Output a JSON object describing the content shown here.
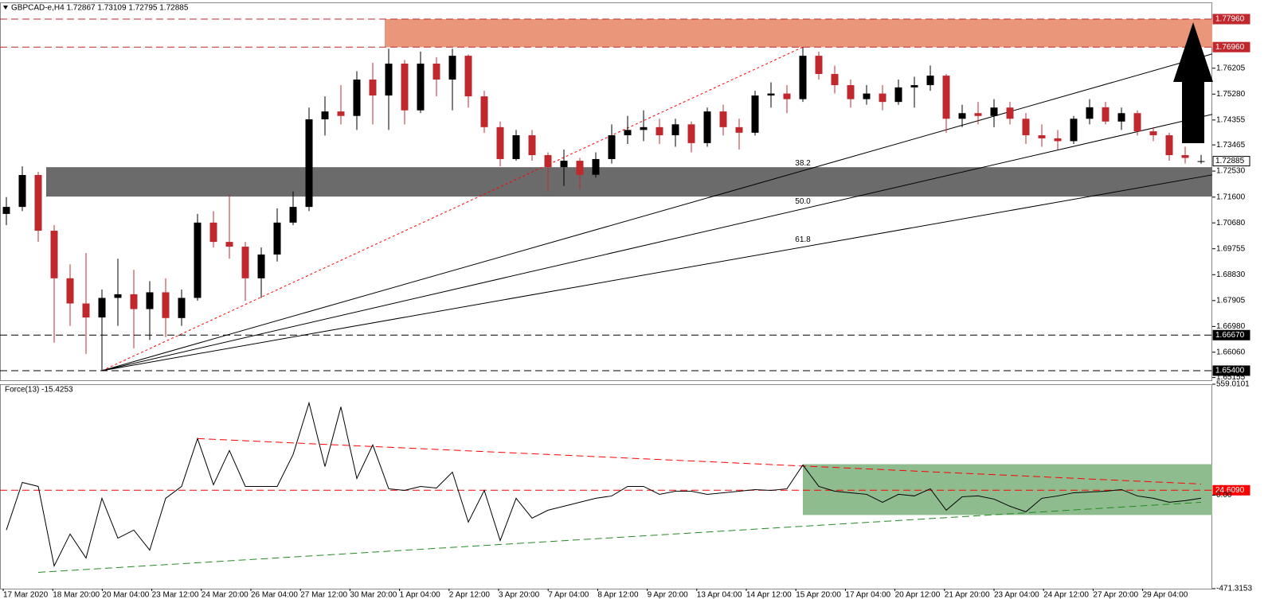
{
  "chart_data": [
    {
      "type": "candlestick",
      "title": "GBPCAD-e,H4 1.72867 1.73109 1.72795 1.72885",
      "up_color": "#000000",
      "down_color": "#c0282d",
      "candles": [
        [
          1.71,
          1.716,
          1.706,
          1.7125
        ],
        [
          1.7125,
          1.727,
          1.711,
          1.7239
        ],
        [
          1.7239,
          1.725,
          1.7,
          1.704
        ],
        [
          1.704,
          1.706,
          1.664,
          1.687
        ],
        [
          1.687,
          1.692,
          1.67,
          1.678
        ],
        [
          1.678,
          1.696,
          1.66,
          1.673
        ],
        [
          1.673,
          1.683,
          1.654,
          1.68
        ],
        [
          1.68,
          1.694,
          1.67,
          1.6813
        ],
        [
          1.6813,
          1.69,
          1.662,
          1.676
        ],
        [
          1.676,
          1.686,
          1.665,
          1.682
        ],
        [
          1.682,
          1.687,
          1.666,
          1.6728
        ],
        [
          1.6728,
          1.683,
          1.67,
          1.68
        ],
        [
          1.68,
          1.71,
          1.679,
          1.7069
        ],
        [
          1.7069,
          1.711,
          1.698,
          1.7
        ],
        [
          1.7,
          1.717,
          1.694,
          1.6983
        ],
        [
          1.6983,
          1.7,
          1.679,
          1.687
        ],
        [
          1.687,
          1.698,
          1.68,
          1.6955
        ],
        [
          1.6955,
          1.712,
          1.693,
          1.7069
        ],
        [
          1.7069,
          1.718,
          1.706,
          1.7125
        ],
        [
          1.7125,
          1.748,
          1.711,
          1.7438
        ],
        [
          1.7438,
          1.752,
          1.738,
          1.7466
        ],
        [
          1.7466,
          1.756,
          1.742,
          1.745
        ],
        [
          1.745,
          1.761,
          1.74,
          1.758
        ],
        [
          1.758,
          1.764,
          1.742,
          1.7523
        ],
        [
          1.7523,
          1.769,
          1.74,
          1.7637
        ],
        [
          1.7637,
          1.765,
          1.742,
          1.747
        ],
        [
          1.747,
          1.768,
          1.746,
          1.7637
        ],
        [
          1.7637,
          1.766,
          1.752,
          1.758
        ],
        [
          1.758,
          1.769,
          1.747,
          1.7665
        ],
        [
          1.7665,
          1.767,
          1.748,
          1.752
        ],
        [
          1.752,
          1.754,
          1.739,
          1.741
        ],
        [
          1.741,
          1.743,
          1.727,
          1.7296
        ],
        [
          1.7296,
          1.74,
          1.729,
          1.7381
        ],
        [
          1.7381,
          1.74,
          1.729,
          1.731
        ],
        [
          1.731,
          1.732,
          1.718,
          1.7267
        ],
        [
          1.7267,
          1.733,
          1.72,
          1.729
        ],
        [
          1.729,
          1.73,
          1.719,
          1.724
        ],
        [
          1.724,
          1.732,
          1.723,
          1.7296
        ],
        [
          1.7296,
          1.742,
          1.728,
          1.7381
        ],
        [
          1.7381,
          1.745,
          1.735,
          1.74
        ],
        [
          1.74,
          1.747,
          1.736,
          1.741
        ],
        [
          1.741,
          1.744,
          1.735,
          1.7381
        ],
        [
          1.7381,
          1.744,
          1.734,
          1.742
        ],
        [
          1.742,
          1.743,
          1.732,
          1.7353
        ],
        [
          1.7353,
          1.748,
          1.734,
          1.7466
        ],
        [
          1.7466,
          1.749,
          1.738,
          1.741
        ],
        [
          1.741,
          1.744,
          1.733,
          1.739
        ],
        [
          1.739,
          1.754,
          1.738,
          1.7523
        ],
        [
          1.7523,
          1.757,
          1.748,
          1.753
        ],
        [
          1.753,
          1.756,
          1.746,
          1.751
        ],
        [
          1.751,
          1.7696,
          1.75,
          1.7665
        ],
        [
          1.7665,
          1.768,
          1.758,
          1.76
        ],
        [
          1.76,
          1.763,
          1.753,
          1.756
        ],
        [
          1.756,
          1.758,
          1.748,
          1.751
        ],
        [
          1.751,
          1.756,
          1.749,
          1.753
        ],
        [
          1.753,
          1.756,
          1.747,
          1.75
        ],
        [
          1.75,
          1.758,
          1.749,
          1.7552
        ],
        [
          1.7552,
          1.759,
          1.748,
          1.756
        ],
        [
          1.756,
          1.763,
          1.754,
          1.7594
        ],
        [
          1.7594,
          1.76,
          1.739,
          1.744
        ],
        [
          1.744,
          1.749,
          1.741,
          1.746
        ],
        [
          1.746,
          1.75,
          1.742,
          1.745
        ],
        [
          1.745,
          1.751,
          1.741,
          1.748
        ],
        [
          1.748,
          1.75,
          1.742,
          1.744
        ],
        [
          1.744,
          1.746,
          1.735,
          1.7381
        ],
        [
          1.7381,
          1.742,
          1.734,
          1.737
        ],
        [
          1.737,
          1.74,
          1.733,
          1.736
        ],
        [
          1.736,
          1.745,
          1.735,
          1.744
        ],
        [
          1.744,
          1.751,
          1.742,
          1.7481
        ],
        [
          1.7481,
          1.75,
          1.742,
          1.743
        ],
        [
          1.743,
          1.748,
          1.74,
          1.746
        ],
        [
          1.746,
          1.747,
          1.738,
          1.7395
        ],
        [
          1.7395,
          1.741,
          1.736,
          1.7381
        ],
        [
          1.7381,
          1.739,
          1.729,
          1.731
        ],
        [
          1.731,
          1.734,
          1.728,
          1.73
        ],
        [
          1.72867,
          1.73109,
          1.72795,
          1.72885
        ]
      ],
      "ylim": [
        1.65058,
        1.78557
      ],
      "yticks": [
        1.76205,
        {
          "value": 1.7528,
          "label": "1.75280"
        },
        1.74355,
        1.73465,
        {
          "value": 1.7253,
          "label": "1.72530"
        },
        {
          "value": 1.716,
          "label": "1.71600"
        },
        {
          "value": 1.7068,
          "label": "1.70680"
        },
        1.69755,
        {
          "value": 1.6883,
          "label": "1.68830"
        },
        1.67905,
        {
          "value": 1.6698,
          "label": "1.66980"
        },
        {
          "value": 1.6606,
          "label": "1.66060"
        },
        1.65155
      ],
      "levels": [
        {
          "value": 1.7796,
          "label": "1.77960",
          "color": "#c0282d",
          "bg": "#c0282d",
          "line": "dashed"
        },
        {
          "value": 1.7696,
          "label": "1.76960",
          "color": "#c0282d",
          "bg": "#c0282d",
          "line": "dashed"
        },
        {
          "value": 1.72885,
          "label": "1.72885",
          "color": "#000000",
          "bg": "#ffffff"
        },
        {
          "value": 1.6667,
          "label": "1.66670",
          "color": "#000000",
          "bg": "#000000",
          "line": "dashed"
        },
        {
          "value": 1.654,
          "label": "1.65400",
          "color": "#000000",
          "bg": "#000000",
          "line": "dashed"
        }
      ],
      "zones": [
        {
          "low": 1.7696,
          "high": 1.7796,
          "from": 23.75,
          "color": "#e9967a"
        },
        {
          "low": 1.7162,
          "high": 1.7267,
          "from": 2.5,
          "color": "#6b6b6b"
        }
      ],
      "fan": {
        "levels": [
          38.2,
          {
            "value": 50,
            "label": "50.0"
          },
          61.8
        ],
        "color": "#000000",
        "baseline_color": "#ff0000"
      }
    },
    {
      "type": "line",
      "title": "Force(13) -15.4253",
      "color": "#000000",
      "values": [
        -176,
        64,
        44,
        -357,
        -196,
        -317,
        -16,
        -217,
        -176,
        -277,
        -16,
        44,
        285,
        52,
        225,
        44,
        44,
        44,
        205,
        465,
        144,
        445,
        84,
        253,
        32,
        24,
        44,
        36,
        116,
        -136,
        24,
        -229,
        -16,
        -116,
        -76,
        -56,
        -36,
        -16,
        -4,
        44,
        44,
        4,
        20,
        20,
        4,
        12,
        20,
        28,
        24,
        32,
        152,
        44,
        20,
        12,
        4,
        -36,
        4,
        -4,
        32,
        -76,
        -8,
        -4,
        -20,
        -56,
        -84,
        -16,
        -4,
        12,
        16,
        20,
        28,
        -4,
        -16,
        -36,
        -28,
        -15.4253
      ],
      "ylim": [
        -471.3153,
        559.0101
      ],
      "yticks": [
        559.0101,
        {
          "value": 0,
          "label": "0.00"
        },
        -471.3153
      ],
      "levels": [
        {
          "value": 24.609,
          "label": "24.6090",
          "color": "#ff0000",
          "bg": "#ff0000",
          "line": "dashed"
        }
      ],
      "zones": [
        {
          "low": -100,
          "high": 156,
          "from": 50,
          "color": "#8fbc8f"
        }
      ],
      "trendlines": [
        {
          "x": [
            12,
            75
          ],
          "values": [
            285,
            56
          ],
          "color": "#ff0000"
        },
        {
          "x": [
            2,
            75
          ],
          "values": [
            -389,
            -36
          ],
          "color": "#228b22"
        }
      ],
      "xlabels": [
        "17 Mar 2020",
        "18 Mar 20:00",
        "20 Mar 04:00",
        "23 Mar 12:00",
        "24 Mar 20:00",
        "26 Mar 04:00",
        "27 Mar 12:00",
        "30 Mar 20:00",
        "1 Apr 04:00",
        "2 Apr 12:00",
        "3 Apr 20:00",
        "7 Apr 04:00",
        "8 Apr 12:00",
        "9 Apr 20:00",
        "13 Apr 04:00",
        "14 Apr 12:00",
        "15 Apr 20:00",
        "17 Apr 04:00",
        "20 Apr 12:00",
        "21 Apr 20:00",
        "23 Apr 04:00",
        "24 Apr 12:00",
        "27 Apr 20:00",
        "29 Apr 04:00"
      ]
    }
  ]
}
